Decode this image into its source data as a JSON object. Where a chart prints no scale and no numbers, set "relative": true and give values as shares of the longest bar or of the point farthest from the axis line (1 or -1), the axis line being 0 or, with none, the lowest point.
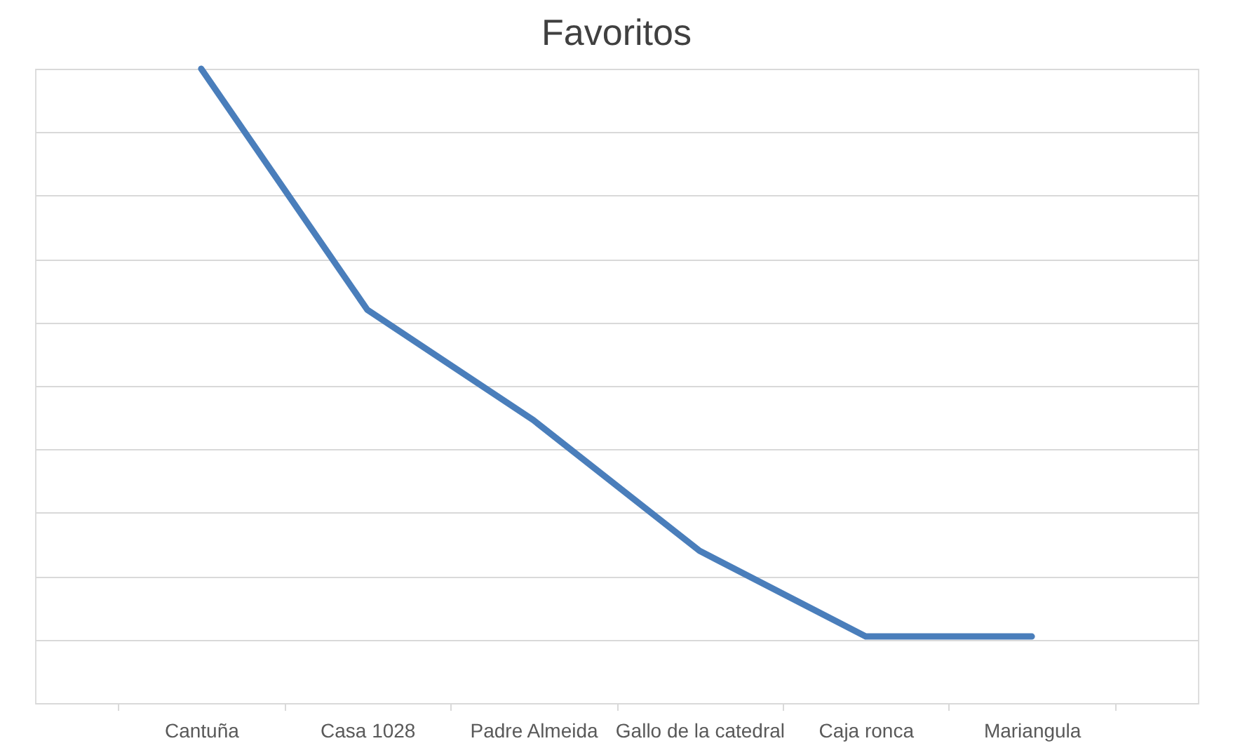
{
  "chart_data": {
    "type": "line",
    "title": "Favoritos",
    "relative": true,
    "grid": "y",
    "categories": [
      "Cantuña",
      "Casa 1028",
      "Padre Almeida",
      "Gallo de la catedral",
      "Caja ronca",
      "Mariangula"
    ],
    "series": [
      {
        "color": "#4a7ebb",
        "values": [
          1,
          0.62,
          0.446,
          0.24,
          0.105,
          0.105
        ]
      }
    ],
    "legend": false,
    "marker": "none",
    "line_style": "solid"
  }
}
